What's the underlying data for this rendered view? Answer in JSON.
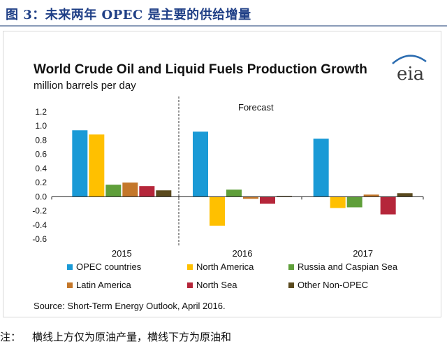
{
  "figure_title": "图 3：未来两年 OPEC 是主要的供给增量",
  "note_label": "注：",
  "note_text": "横线上方仅为原油产量，横线下方为原油和",
  "logo_text": "eia",
  "chart_data": {
    "type": "bar",
    "title": "World Crude Oil and Liquid Fuels Production Growth",
    "ylabel": "million barrels per day",
    "xlabel": "",
    "ylim": [
      -0.6,
      1.2
    ],
    "yticks": [
      -0.6,
      -0.4,
      -0.2,
      0.0,
      0.2,
      0.4,
      0.6,
      0.8,
      1.0,
      1.2
    ],
    "ytick_labels": [
      "-0.6",
      "-0.4",
      "-0.2",
      "0.0",
      "0.2",
      "0.4",
      "0.6",
      "0.8",
      "1.0",
      "1.2"
    ],
    "grid": false,
    "categories": [
      "2015",
      "2016",
      "2017"
    ],
    "annotation": "Forecast",
    "source": "Source: Short-Term Energy Outlook, April 2016.",
    "legend_position": "bottom",
    "series": [
      {
        "name": "OPEC countries",
        "color": "#1a9ad6",
        "values": [
          0.94,
          0.92,
          0.82
        ]
      },
      {
        "name": "North America",
        "color": "#ffc000",
        "values": [
          0.88,
          -0.41,
          -0.16
        ]
      },
      {
        "name": "Russia and Caspian Sea",
        "color": "#5f9f3a",
        "values": [
          0.17,
          0.1,
          -0.15
        ]
      },
      {
        "name": "Latin America",
        "color": "#c4772a",
        "values": [
          0.2,
          -0.03,
          0.03
        ]
      },
      {
        "name": "North Sea",
        "color": "#b5263a",
        "values": [
          0.15,
          -0.1,
          -0.25
        ]
      },
      {
        "name": "Other Non-OPEC",
        "color": "#5a4a1e",
        "values": [
          0.09,
          0.01,
          0.05
        ]
      }
    ]
  }
}
